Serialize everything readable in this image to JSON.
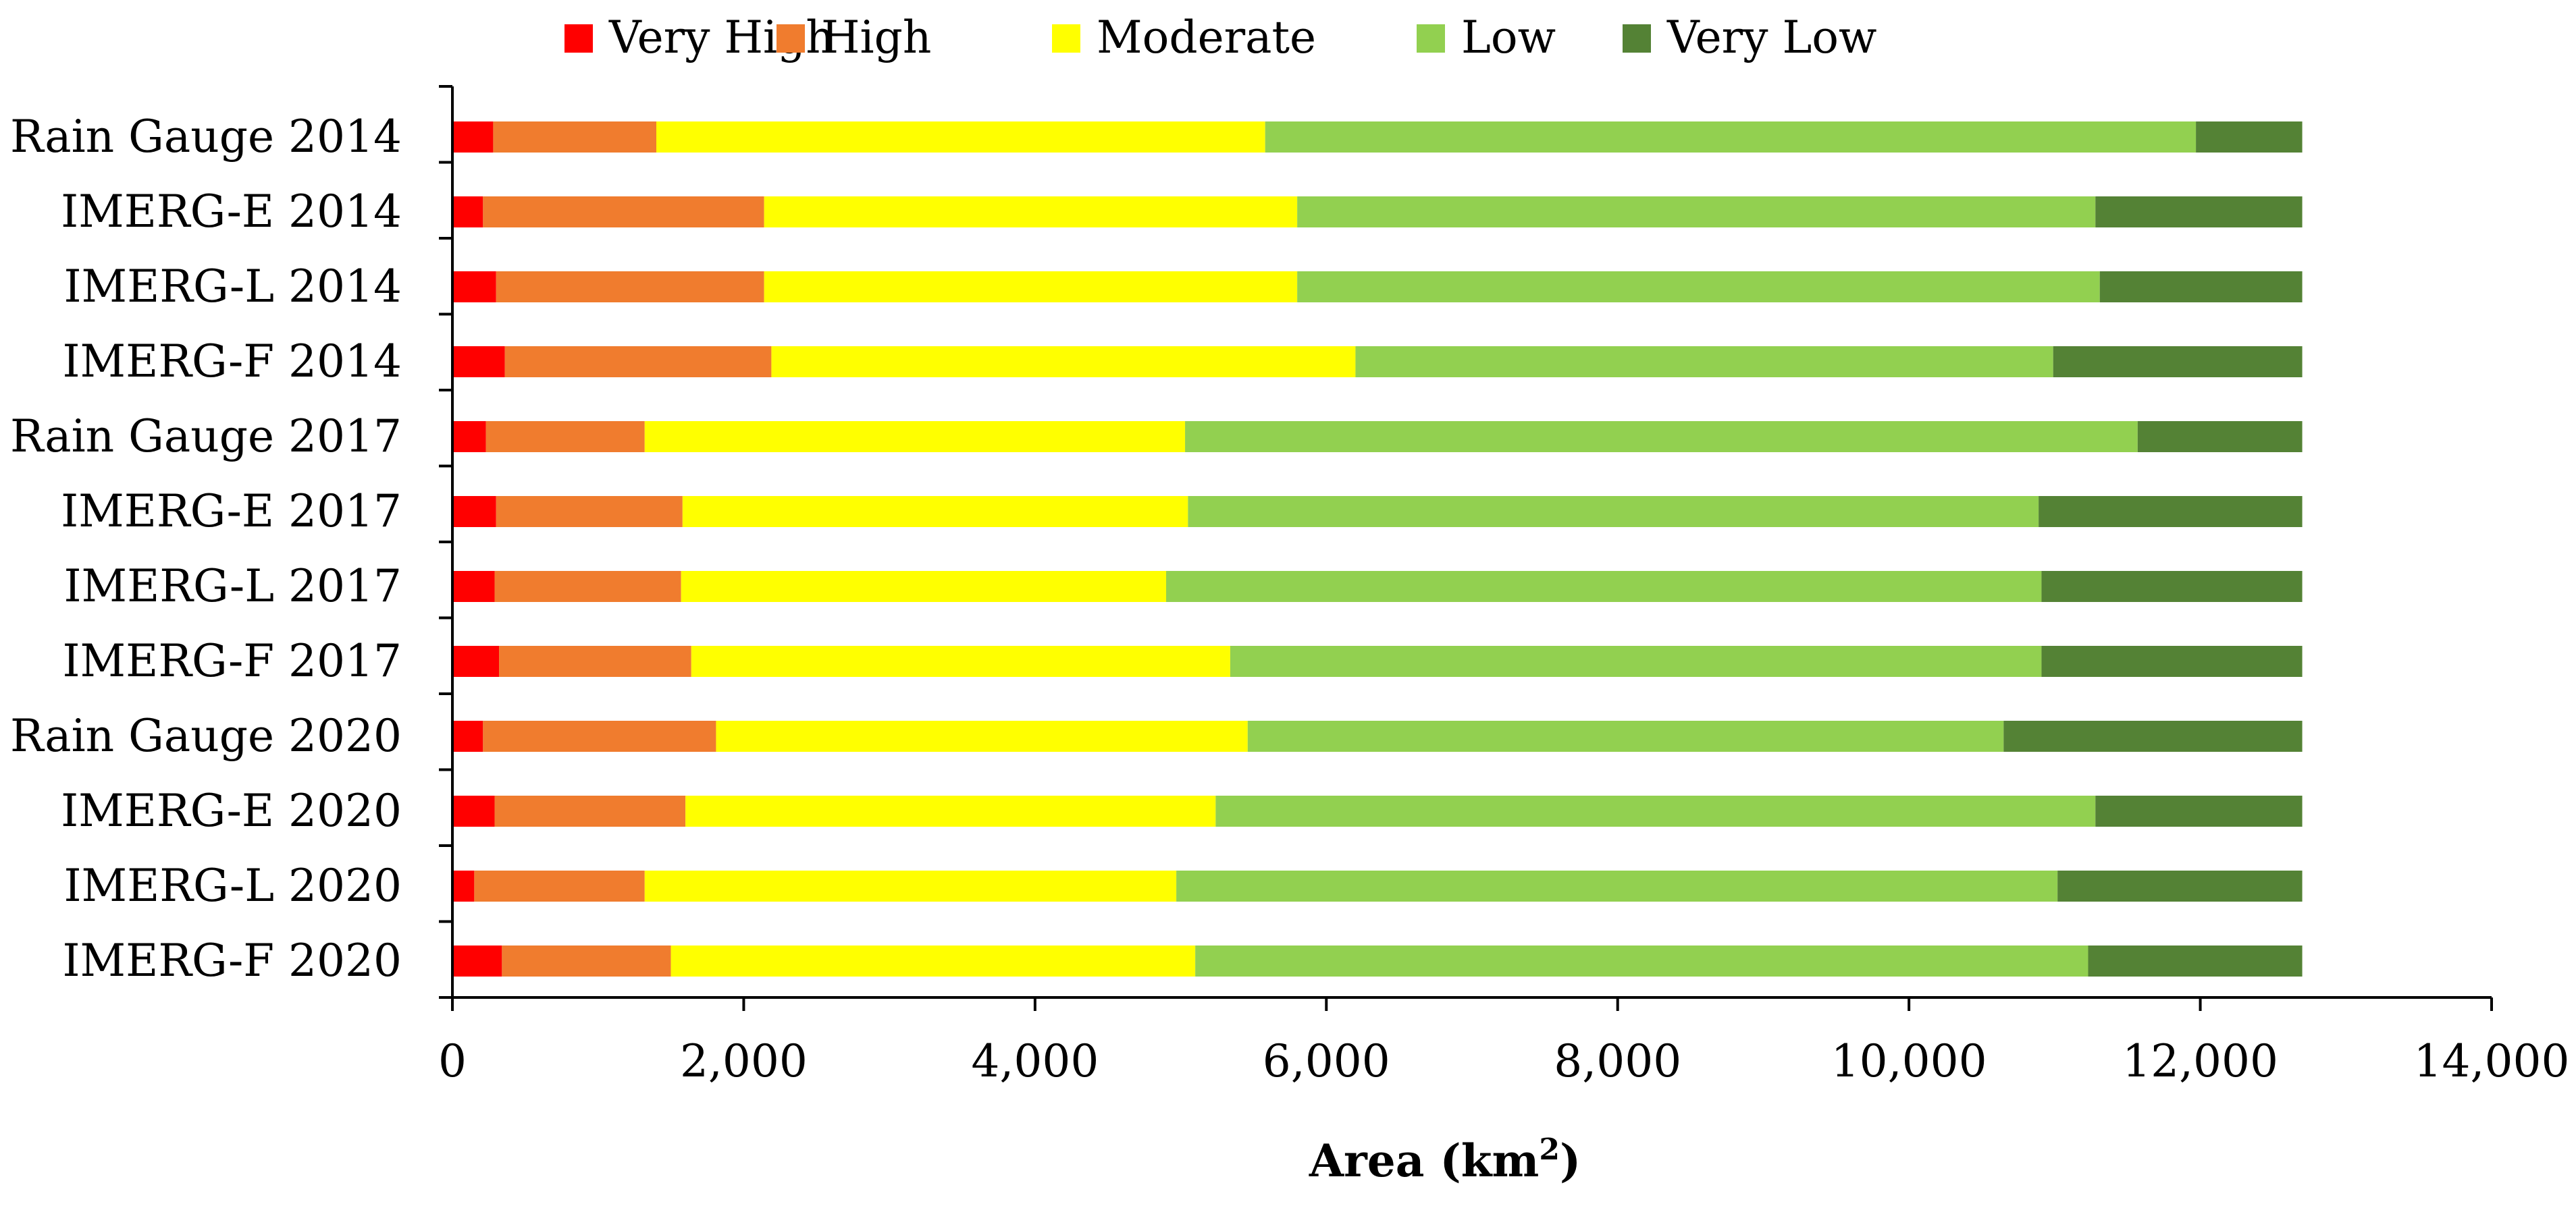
{
  "chart_data": {
    "type": "bar",
    "orientation": "horizontal",
    "stacked": true,
    "categories": [
      "Rain Gauge 2014",
      "IMERG-E 2014",
      "IMERG-L 2014",
      "IMERG-F 2014",
      "Rain Gauge 2017",
      "IMERG-E 2017",
      "IMERG-L 2017",
      "IMERG-F 2017",
      "Rain Gauge 2020",
      "IMERG-E 2020",
      "IMERG-L 2020",
      "IMERG-F 2020"
    ],
    "series": [
      {
        "name": "Very High",
        "color": "#ff0000",
        "values": [
          280,
          210,
          300,
          360,
          230,
          300,
          290,
          320,
          210,
          290,
          150,
          340
        ]
      },
      {
        "name": "High",
        "color": "#f07c2e",
        "values": [
          1120,
          1930,
          1840,
          1830,
          1090,
          1280,
          1280,
          1320,
          1600,
          1310,
          1170,
          1160
        ]
      },
      {
        "name": "Moderate",
        "color": "#ffff00",
        "values": [
          4180,
          3660,
          3660,
          4010,
          3710,
          3470,
          3330,
          3700,
          3650,
          3640,
          3650,
          3600
        ]
      },
      {
        "name": "Low",
        "color": "#92d050",
        "values": [
          6390,
          5480,
          5510,
          4790,
          6540,
          5840,
          6010,
          5570,
          5190,
          6040,
          6050,
          6130
        ]
      },
      {
        "name": "Very Low",
        "color": "#548235",
        "values": [
          730,
          1420,
          1390,
          1710,
          1130,
          1810,
          1790,
          1790,
          2050,
          1420,
          1680,
          1470
        ]
      }
    ],
    "xlabel": "Area (km",
    "xlabel_sup": "2",
    "xlabel_close": ")",
    "xlim": [
      0,
      14000
    ],
    "x_ticks": [
      0,
      2000,
      4000,
      6000,
      8000,
      10000,
      12000,
      14000
    ],
    "x_tick_labels": [
      "0",
      "2,000",
      "4,000",
      "6,000",
      "8,000",
      "10,000",
      "12,000",
      "14,000"
    ],
    "legend_position": "top",
    "grid": false
  }
}
